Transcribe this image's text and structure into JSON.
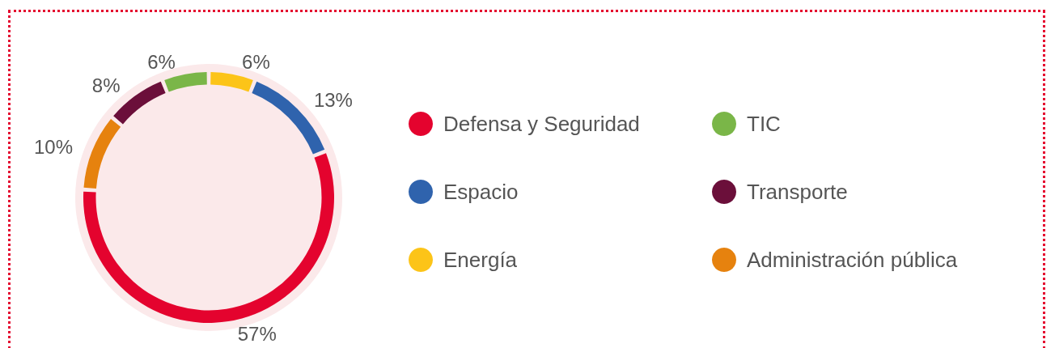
{
  "chart_data": {
    "type": "donut",
    "categories": [
      "Defensa y Seguridad",
      "Espacio",
      "Energía",
      "TIC",
      "Transporte",
      "Administración pública"
    ],
    "values": [
      57,
      13,
      6,
      6,
      8,
      10
    ],
    "value_labels": [
      "57%",
      "13%",
      "6%",
      "6%",
      "8%",
      "10%"
    ],
    "colors": [
      "#e4032e",
      "#2f63ad",
      "#fcc418",
      "#7ab648",
      "#6b0f3a",
      "#e6820e"
    ],
    "legend": "right"
  }
}
